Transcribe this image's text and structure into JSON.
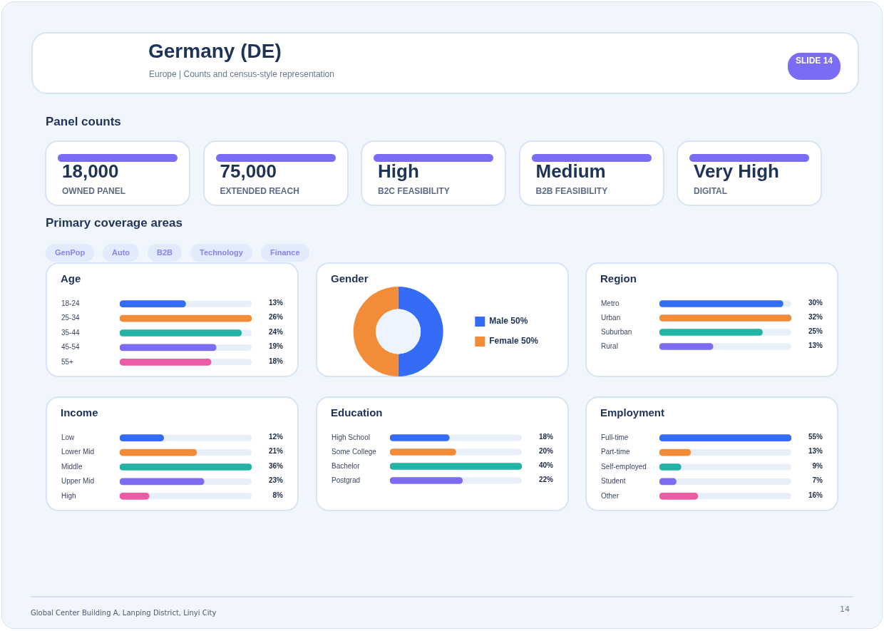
{
  "chart_data": [
    {
      "type": "other",
      "title": "Germany (DE)",
      "subtitle": "Europe | Counts and census-style representation",
      "annotations": [
        "SLIDE 14"
      ]
    },
    {
      "type": "other",
      "title": "Panel counts",
      "annotations": [
        "18,000",
        "OWNED PANEL",
        "75,000",
        "EXTENDED REACH",
        "High",
        "B2C FEASIBILITY",
        "Medium",
        "B2B FEASIBILITY",
        "Very High",
        "DIGITAL"
      ]
    },
    {
      "type": "other",
      "title": "Primary coverage areas",
      "annotations": [
        "GenPop",
        "Auto",
        "B2B",
        "Technology",
        "Finance"
      ]
    },
    {
      "type": "bar",
      "title": "Age",
      "orientation": "horizontal",
      "categories": [
        "18-24",
        "25-34",
        "35-44",
        "45-54",
        "55+"
      ],
      "values": [
        13,
        26,
        24,
        19,
        18
      ],
      "value_labels": [
        "13%",
        "26%",
        "24%",
        "19%",
        "18%"
      ],
      "colors": [
        "#356cf6",
        "#f28c38",
        "#22b5a5",
        "#7c6cf2",
        "#eb5ba6"
      ]
    },
    {
      "type": "donut",
      "title": "Gender",
      "categories": [
        "Male 50%",
        "Female 50%"
      ],
      "values": [
        50,
        50
      ],
      "colors": [
        "#356cf6",
        "#f28c38"
      ],
      "legend": "right"
    },
    {
      "type": "bar",
      "title": "Region",
      "orientation": "horizontal",
      "categories": [
        "Metro",
        "Urban",
        "Suburban",
        "Rural"
      ],
      "values": [
        30,
        32,
        25,
        13
      ],
      "value_labels": [
        "30%",
        "32%",
        "25%",
        "13%"
      ],
      "colors": [
        "#356cf6",
        "#f28c38",
        "#22b5a5",
        "#7c6cf2"
      ]
    },
    {
      "type": "bar",
      "title": "Income",
      "orientation": "horizontal",
      "categories": [
        "Low",
        "Lower Mid",
        "Middle",
        "Upper Mid",
        "High"
      ],
      "values": [
        12,
        21,
        36,
        23,
        8
      ],
      "value_labels": [
        "12%",
        "21%",
        "36%",
        "23%",
        "8%"
      ],
      "colors": [
        "#356cf6",
        "#f28c38",
        "#22b5a5",
        "#7c6cf2",
        "#eb5ba6"
      ]
    },
    {
      "type": "bar",
      "title": "Education",
      "orientation": "horizontal",
      "categories": [
        "High School",
        "Some College",
        "Bachelor",
        "Postgrad"
      ],
      "values": [
        18,
        20,
        40,
        22
      ],
      "value_labels": [
        "18%",
        "20%",
        "40%",
        "22%"
      ],
      "colors": [
        "#356cf6",
        "#f28c38",
        "#22b5a5",
        "#7c6cf2"
      ]
    },
    {
      "type": "bar",
      "title": "Employment",
      "orientation": "horizontal",
      "categories": [
        "Full-time",
        "Part-time",
        "Self-employed",
        "Student",
        "Other"
      ],
      "values": [
        55,
        13,
        9,
        7,
        16
      ],
      "value_labels": [
        "55%",
        "13%",
        "9%",
        "7%",
        "16%"
      ],
      "colors": [
        "#356cf6",
        "#f28c38",
        "#22b5a5",
        "#7c6cf2",
        "#eb5ba6"
      ]
    },
    {
      "type": "other",
      "annotations": [
        "Global Center Building A, Lanping District, Linyi City",
        "14"
      ]
    }
  ]
}
